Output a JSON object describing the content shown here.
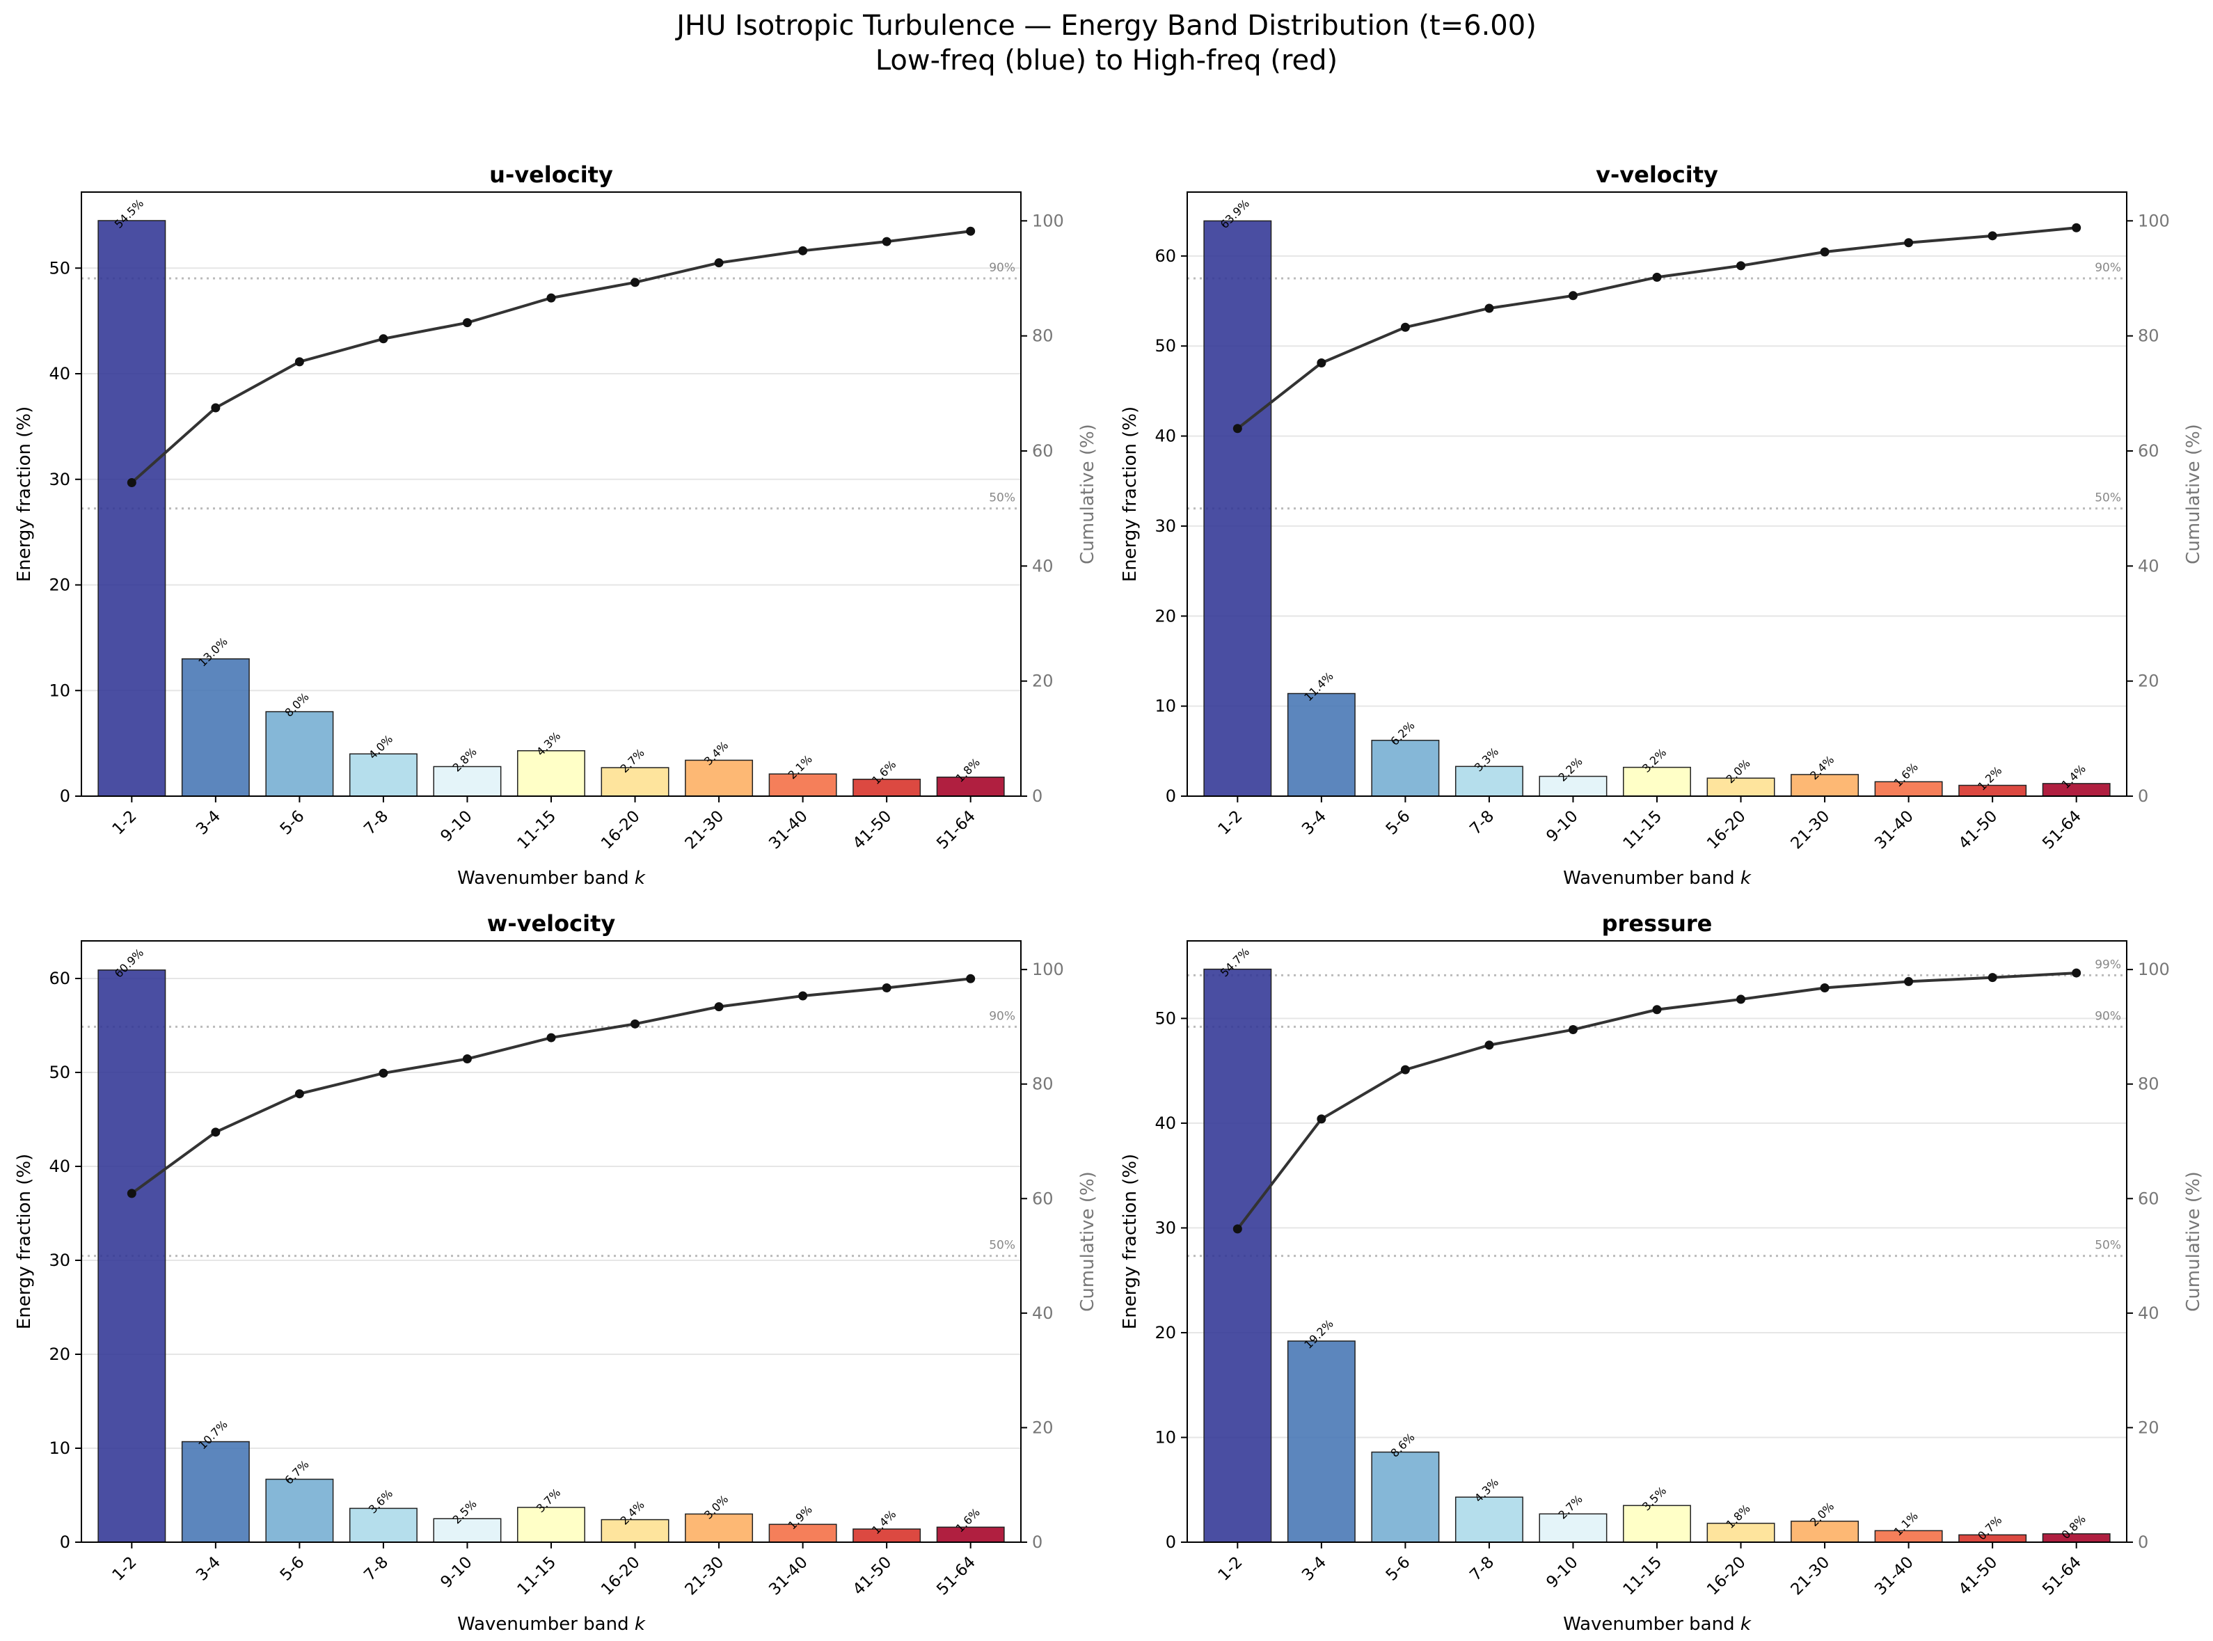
{
  "figure": {
    "title_line1": "JHU Isotropic Turbulence — Energy Band Distribution (t=6.00)",
    "title_line2": "Low-freq (blue) to High-freq (red)"
  },
  "colors": {
    "bars": [
      "#313695",
      "#4575b4",
      "#74add1",
      "#abd9e9",
      "#e0f3f8",
      "#ffffbf",
      "#fee090",
      "#fdae61",
      "#f46d43",
      "#d73027",
      "#a50026"
    ],
    "cumulative_line": "#333333",
    "reference_line": "#bbbbbb"
  },
  "chart_data": [
    {
      "type": "bar",
      "title": "u-velocity",
      "xlabel": "Wavenumber band k",
      "ylabel": "Energy fraction (%)",
      "ylabel_right": "Cumulative (%)",
      "categories": [
        "1-2",
        "3-4",
        "5-6",
        "7-8",
        "9-10",
        "11-15",
        "16-20",
        "21-30",
        "31-40",
        "41-50",
        "51-64"
      ],
      "values": [
        54.5,
        13.0,
        8.0,
        4.0,
        2.8,
        4.3,
        2.7,
        3.4,
        2.1,
        1.6,
        1.8
      ],
      "value_labels": [
        "54.5%",
        "13.0%",
        "8.0%",
        "4.0%",
        "2.8%",
        "4.3%",
        "2.7%",
        "3.4%",
        "2.1%",
        "1.6%",
        "1.8%"
      ],
      "cumulative": [
        54.5,
        67.5,
        75.5,
        79.5,
        82.3,
        86.6,
        89.3,
        92.7,
        94.8,
        96.4,
        98.2
      ],
      "ylim": [
        0,
        57.2
      ],
      "yticks": [
        0,
        10,
        20,
        30,
        40,
        50
      ],
      "ylim_right": [
        0,
        105
      ],
      "yticks_right": [
        0,
        20,
        40,
        60,
        80,
        100
      ],
      "reference_lines": [
        {
          "value": 50,
          "label": "50%"
        },
        {
          "value": 90,
          "label": "90%"
        }
      ]
    },
    {
      "type": "bar",
      "title": "v-velocity",
      "xlabel": "Wavenumber band k",
      "ylabel": "Energy fraction (%)",
      "ylabel_right": "Cumulative (%)",
      "categories": [
        "1-2",
        "3-4",
        "5-6",
        "7-8",
        "9-10",
        "11-15",
        "16-20",
        "21-30",
        "31-40",
        "41-50",
        "51-64"
      ],
      "values": [
        63.9,
        11.4,
        6.2,
        3.3,
        2.2,
        3.2,
        2.0,
        2.4,
        1.6,
        1.2,
        1.4
      ],
      "value_labels": [
        "63.9%",
        "11.4%",
        "6.2%",
        "3.3%",
        "2.2%",
        "3.2%",
        "2.0%",
        "2.4%",
        "1.6%",
        "1.2%",
        "1.4%"
      ],
      "cumulative": [
        63.9,
        75.3,
        81.5,
        84.8,
        87.0,
        90.2,
        92.2,
        94.6,
        96.2,
        97.4,
        98.8
      ],
      "ylim": [
        0,
        67.1
      ],
      "yticks": [
        0,
        10,
        20,
        30,
        40,
        50,
        60
      ],
      "ylim_right": [
        0,
        105
      ],
      "yticks_right": [
        0,
        20,
        40,
        60,
        80,
        100
      ],
      "reference_lines": [
        {
          "value": 50,
          "label": "50%"
        },
        {
          "value": 90,
          "label": "90%"
        }
      ]
    },
    {
      "type": "bar",
      "title": "w-velocity",
      "xlabel": "Wavenumber band k",
      "ylabel": "Energy fraction (%)",
      "ylabel_right": "Cumulative (%)",
      "categories": [
        "1-2",
        "3-4",
        "5-6",
        "7-8",
        "9-10",
        "11-15",
        "16-20",
        "21-30",
        "31-40",
        "41-50",
        "51-64"
      ],
      "values": [
        60.9,
        10.7,
        6.7,
        3.6,
        2.5,
        3.7,
        2.4,
        3.0,
        1.9,
        1.4,
        1.6
      ],
      "value_labels": [
        "60.9%",
        "10.7%",
        "6.7%",
        "3.6%",
        "2.5%",
        "3.7%",
        "2.4%",
        "3.0%",
        "1.9%",
        "1.4%",
        "1.6%"
      ],
      "cumulative": [
        60.9,
        71.6,
        78.3,
        81.9,
        84.4,
        88.1,
        90.5,
        93.5,
        95.4,
        96.8,
        98.4
      ],
      "ylim": [
        0,
        64.0
      ],
      "yticks": [
        0,
        10,
        20,
        30,
        40,
        50,
        60
      ],
      "ylim_right": [
        0,
        105
      ],
      "yticks_right": [
        0,
        20,
        40,
        60,
        80,
        100
      ],
      "reference_lines": [
        {
          "value": 50,
          "label": "50%"
        },
        {
          "value": 90,
          "label": "90%"
        }
      ]
    },
    {
      "type": "bar",
      "title": "pressure",
      "xlabel": "Wavenumber band k",
      "ylabel": "Energy fraction (%)",
      "ylabel_right": "Cumulative (%)",
      "categories": [
        "1-2",
        "3-4",
        "5-6",
        "7-8",
        "9-10",
        "11-15",
        "16-20",
        "21-30",
        "31-40",
        "41-50",
        "51-64"
      ],
      "values": [
        54.7,
        19.2,
        8.6,
        4.3,
        2.7,
        3.5,
        1.8,
        2.0,
        1.1,
        0.7,
        0.8
      ],
      "value_labels": [
        "54.7%",
        "19.2%",
        "8.6%",
        "4.3%",
        "2.7%",
        "3.5%",
        "1.8%",
        "2.0%",
        "1.1%",
        "0.7%",
        "0.8%"
      ],
      "cumulative": [
        54.7,
        73.9,
        82.5,
        86.8,
        89.5,
        93.0,
        94.8,
        96.8,
        97.9,
        98.6,
        99.4
      ],
      "ylim": [
        0,
        57.4
      ],
      "yticks": [
        0,
        10,
        20,
        30,
        40,
        50
      ],
      "ylim_right": [
        0,
        105
      ],
      "yticks_right": [
        0,
        20,
        40,
        60,
        80,
        100
      ],
      "reference_lines": [
        {
          "value": 50,
          "label": "50%"
        },
        {
          "value": 90,
          "label": "90%"
        },
        {
          "value": 99,
          "label": "99%"
        }
      ]
    }
  ]
}
